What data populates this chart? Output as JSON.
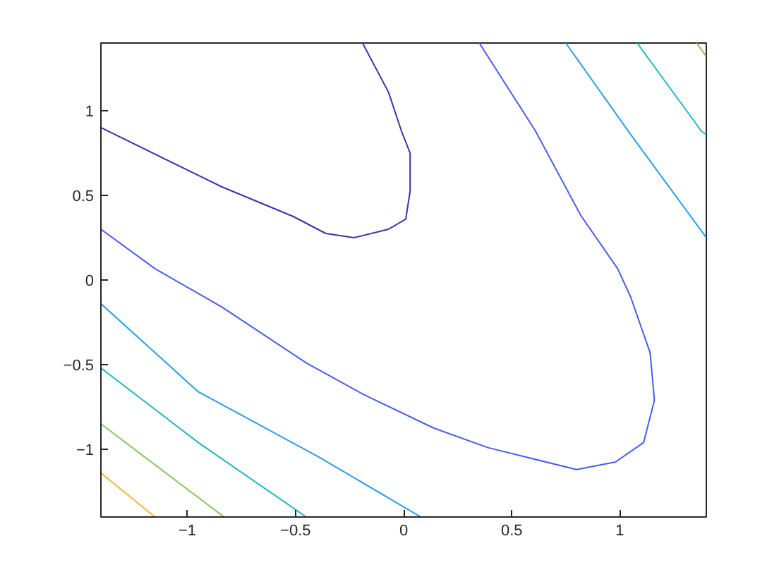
{
  "chart_data": {
    "type": "line",
    "xlim": [
      -1.4,
      1.4
    ],
    "ylim": [
      -1.4,
      1.4
    ],
    "xticks": [
      -1,
      -0.5,
      0,
      0.5,
      1
    ],
    "yticks": [
      -1,
      -0.5,
      0,
      0.5,
      1
    ],
    "grid": false,
    "marker": "none",
    "line_style": "solid",
    "series": [
      {
        "color": "#3e2fb0",
        "x": [
          -1.4,
          -0.84,
          -0.51,
          -0.36,
          -0.23,
          -0.07,
          0.01,
          0.03,
          0.03,
          -0.01,
          -0.07,
          -0.19
        ],
        "values": [
          0.9,
          0.55,
          0.375,
          0.275,
          0.25,
          0.3,
          0.36,
          0.525,
          0.75,
          0.88,
          1.11,
          1.4
        ]
      },
      {
        "color": "#4a5cf0",
        "x": [
          -1.4,
          -1.15,
          -0.84,
          -0.45,
          -0.18,
          0.14,
          0.39,
          0.8,
          0.98,
          1.11,
          1.16,
          1.14,
          1.05,
          0.99,
          0.82,
          0.61,
          0.35
        ],
        "values": [
          0.3,
          0.067,
          -0.16,
          -0.49,
          -0.68,
          -0.875,
          -0.99,
          -1.12,
          -1.075,
          -0.96,
          -0.71,
          -0.43,
          -0.1,
          0.067,
          0.38,
          0.88,
          1.4
        ]
      },
      {
        "color": "#2a9ee8",
        "x": [
          -1.4,
          -0.95,
          -0.4,
          0.08
        ],
        "values": [
          -0.14,
          -0.66,
          -1.04,
          -1.4
        ]
      },
      {
        "color": "#2a9ee8",
        "x": [
          0.75,
          1.05,
          1.4
        ],
        "values": [
          1.4,
          0.86,
          0.25
        ]
      },
      {
        "color": "#1fb8c0",
        "x": [
          -1.4,
          -0.95,
          -0.45
        ],
        "values": [
          -0.52,
          -0.96,
          -1.4
        ]
      },
      {
        "color": "#1fb8c0",
        "x": [
          1.08,
          1.38,
          1.4
        ],
        "values": [
          1.4,
          0.875,
          0.86
        ]
      },
      {
        "color": "#86c75a",
        "x": [
          -1.4,
          -0.83
        ],
        "values": [
          -0.85,
          -1.4
        ]
      },
      {
        "color": "#86c75a",
        "x": [
          1.355,
          1.4
        ],
        "values": [
          1.4,
          1.32
        ]
      },
      {
        "color": "#f5b840",
        "x": [
          -1.4,
          -1.15
        ],
        "values": [
          -1.14,
          -1.4
        ]
      }
    ]
  }
}
